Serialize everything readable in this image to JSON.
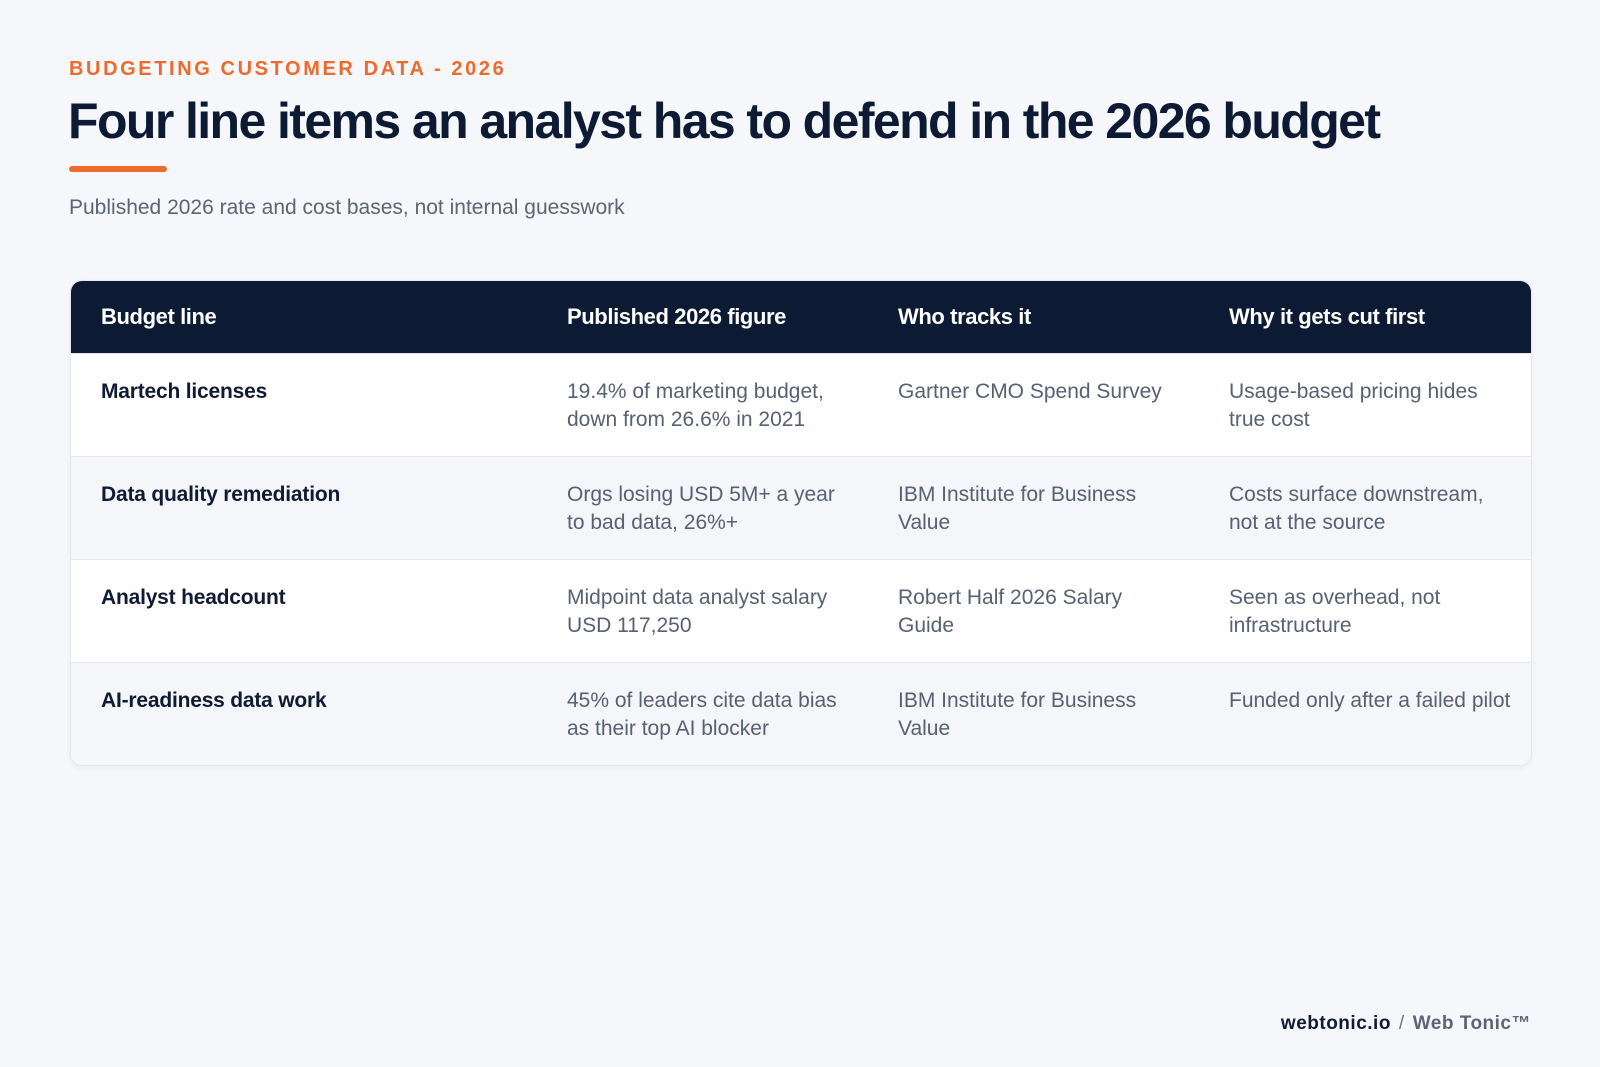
{
  "header": {
    "eyebrow": "BUDGETING CUSTOMER DATA - 2026",
    "title": "Four line items an analyst has to defend in the 2026 budget",
    "subtitle": "Published 2026 rate and cost bases, not internal guesswork"
  },
  "table": {
    "columns": [
      "Budget line",
      "Published 2026 figure",
      "Who tracks it",
      "Why it gets cut first"
    ],
    "rows": [
      {
        "line": "Martech licenses",
        "figure": "19.4% of marketing budget, down from 26.6% in 2021",
        "tracker": "Gartner CMO Spend Survey",
        "reason": "Usage-based pricing hides true cost"
      },
      {
        "line": "Data quality remediation",
        "figure": "Orgs losing USD 5M+ a year to bad data, 26%+",
        "tracker": "IBM Institute for Business Value",
        "reason": "Costs surface downstream, not at the source"
      },
      {
        "line": "Analyst headcount",
        "figure": "Midpoint data analyst salary USD 117,250",
        "tracker": "Robert Half 2026 Salary Guide",
        "reason": "Seen as overhead, not infrastructure"
      },
      {
        "line": "AI-readiness data work",
        "figure": "45% of leaders cite data bias as their top AI blocker",
        "tracker": "IBM Institute for Business Value",
        "reason": "Funded only after a failed pilot"
      }
    ]
  },
  "footer": {
    "site": "webtonic.io",
    "separator": "/",
    "brand": "Web Tonic™"
  },
  "colors": {
    "accent": "#ec6b2d",
    "header_bg": "#0d1a33",
    "page_bg": "#f5f7fa"
  }
}
